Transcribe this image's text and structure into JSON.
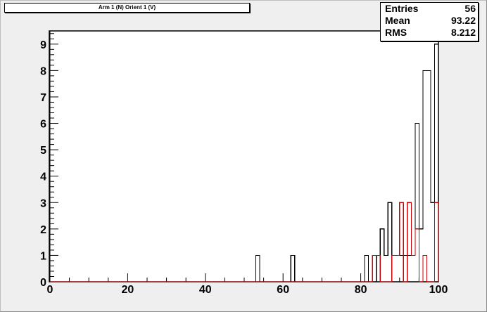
{
  "title_box": {
    "text": "Arm 1 (N) Orient 1 (V)"
  },
  "stats": [
    {
      "label": "Entries",
      "value": "56"
    },
    {
      "label": "Mean",
      "value": "93.22"
    },
    {
      "label": "RMS",
      "value": "8.212"
    }
  ],
  "colors": {
    "canvas": "#efefef",
    "frame": "#ffffff",
    "series_black": "#000000",
    "series_red": "#cc0000"
  },
  "chart_data": {
    "type": "histogram",
    "title": "Arm 1 (N) Orient 1 (V)",
    "xlabel": "",
    "ylabel": "",
    "xlim": [
      0,
      100
    ],
    "ylim": [
      0,
      9.5
    ],
    "bin_width": 1,
    "x_ticks": [
      0,
      20,
      40,
      60,
      80,
      100
    ],
    "y_ticks": [
      0,
      1,
      2,
      3,
      4,
      5,
      6,
      7,
      8,
      9
    ],
    "grid": false,
    "series": [
      {
        "color": "#000000",
        "bins": [
          {
            "x": 53,
            "y": 1
          },
          {
            "x": 62,
            "y": 1
          },
          {
            "x": 81,
            "y": 1
          },
          {
            "x": 84,
            "y": 1
          },
          {
            "x": 85,
            "y": 2
          },
          {
            "x": 86,
            "y": 1
          },
          {
            "x": 87,
            "y": 3
          },
          {
            "x": 88,
            "y": 1
          },
          {
            "x": 89,
            "y": 1
          },
          {
            "x": 90,
            "y": 1
          },
          {
            "x": 91,
            "y": 1
          },
          {
            "x": 92,
            "y": 1
          },
          {
            "x": 93,
            "y": 1
          },
          {
            "x": 94,
            "y": 6
          },
          {
            "x": 95,
            "y": 2
          },
          {
            "x": 96,
            "y": 8
          },
          {
            "x": 97,
            "y": 8
          },
          {
            "x": 98,
            "y": 3
          },
          {
            "x": 99,
            "y": 9
          }
        ]
      },
      {
        "color": "#cc0000",
        "bins": [
          {
            "x": 83,
            "y": 1
          },
          {
            "x": 84,
            "y": 1
          },
          {
            "x": 88,
            "y": 1
          },
          {
            "x": 89,
            "y": 1
          },
          {
            "x": 90,
            "y": 3
          },
          {
            "x": 92,
            "y": 3
          },
          {
            "x": 93,
            "y": 1
          },
          {
            "x": 94,
            "y": 2
          },
          {
            "x": 96,
            "y": 1
          },
          {
            "x": 99,
            "y": 3
          }
        ]
      }
    ]
  }
}
